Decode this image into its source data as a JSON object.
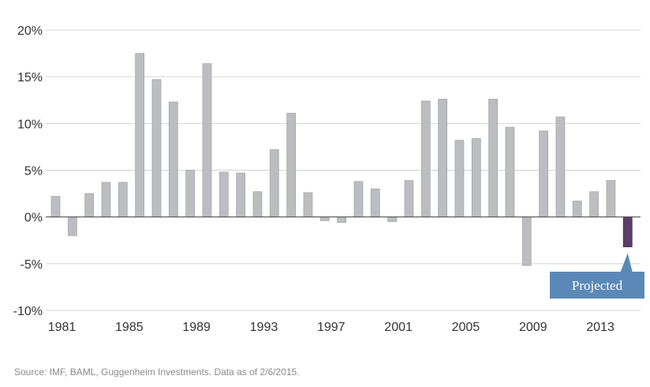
{
  "chart_data": {
    "type": "bar",
    "title": "",
    "xlabel": "",
    "ylabel": "",
    "ylim": [
      -10,
      20
    ],
    "yticks": [
      -10,
      -5,
      0,
      5,
      10,
      15,
      20
    ],
    "ytick_labels": [
      "-10%",
      "-5%",
      "0%",
      "5%",
      "10%",
      "15%",
      "20%"
    ],
    "xtick_labels": [
      "1981",
      "1985",
      "1989",
      "1993",
      "1997",
      "2001",
      "2005",
      "2009",
      "2013"
    ],
    "grid": true,
    "categories": [
      1981,
      1982,
      1983,
      1984,
      1985,
      1986,
      1987,
      1988,
      1989,
      1990,
      1991,
      1992,
      1993,
      1994,
      1995,
      1996,
      1997,
      1998,
      1999,
      2000,
      2001,
      2002,
      2003,
      2004,
      2005,
      2006,
      2007,
      2008,
      2009,
      2010,
      2011,
      2012,
      2013,
      2014,
      2015
    ],
    "values": [
      2.2,
      -2.0,
      2.5,
      3.7,
      3.7,
      17.5,
      14.7,
      12.3,
      5.0,
      16.4,
      4.8,
      4.7,
      2.7,
      7.2,
      11.1,
      2.6,
      -0.4,
      -0.6,
      3.8,
      3.0,
      -0.5,
      3.9,
      12.4,
      12.6,
      8.2,
      8.4,
      12.6,
      9.6,
      -5.2,
      9.2,
      10.7,
      1.7,
      2.7,
      3.9,
      -3.2
    ],
    "bar_color": "#bcbdc0",
    "bar_stroke": "#a7a8ab",
    "projected_index": 34,
    "projected_color": "#5b3f68",
    "annotation": {
      "text": "Projected",
      "target_category": 2015,
      "color": "#5b89b7"
    }
  },
  "source_text": "Source: IMF, BAML, Guggenheim Investments. Data as of 2/6/2015."
}
